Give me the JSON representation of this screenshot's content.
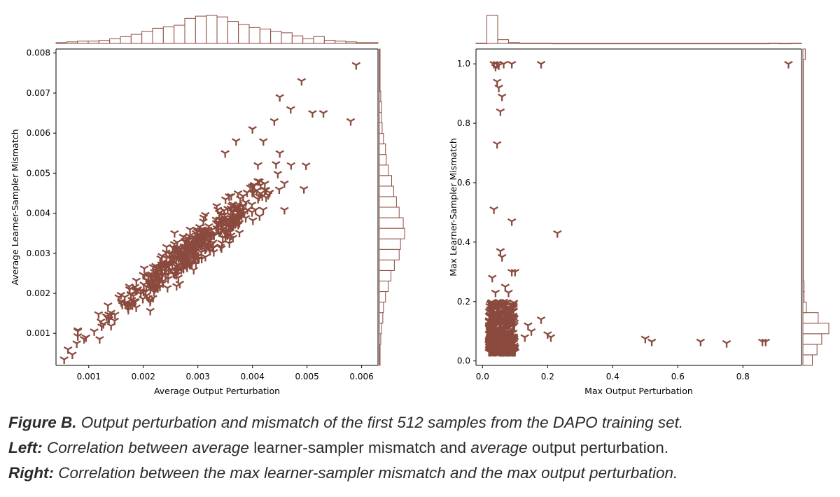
{
  "colors": {
    "marker": "#8b4a3e",
    "hist_edge": "#8b4a3e",
    "hist_fill": "#ffffff",
    "axis": "#000000",
    "text": "#2b2b2b"
  },
  "chart_data": [
    {
      "type": "scatter",
      "marker": "tri_down",
      "xlabel": "Average Output Perturbation",
      "ylabel": "Average Learner-Sampler Mismatch",
      "xlim": [
        0.0004,
        0.0063
      ],
      "ylim": [
        0.0002,
        0.0081
      ],
      "xticks": [
        0.001,
        0.002,
        0.003,
        0.004,
        0.005,
        0.006
      ],
      "xtick_labels": [
        "0.001",
        "0.002",
        "0.003",
        "0.004",
        "0.005",
        "0.006"
      ],
      "yticks": [
        0.001,
        0.002,
        0.003,
        0.004,
        0.005,
        0.006,
        0.007,
        0.008
      ],
      "ytick_labels": [
        "0.001",
        "0.002",
        "0.003",
        "0.004",
        "0.005",
        "0.006",
        "0.007",
        "0.008"
      ],
      "n_samples": 512,
      "model": {
        "kind": "linear",
        "slope": 1.05,
        "intercept": 5e-05,
        "noise": 0.00022,
        "x_mean": 0.0029,
        "x_sd": 0.00075,
        "x_min": 0.0008,
        "x_max": 0.0055
      },
      "outliers": [
        [
          0.00055,
          0.00035
        ],
        [
          0.00062,
          0.0006
        ],
        [
          0.0007,
          0.00047
        ],
        [
          0.00078,
          0.00075
        ],
        [
          0.00095,
          0.0009
        ],
        [
          0.0011,
          0.00105
        ],
        [
          0.0051,
          0.0065
        ],
        [
          0.0053,
          0.0065
        ],
        [
          0.0058,
          0.0063
        ],
        [
          0.0059,
          0.0077
        ],
        [
          0.0049,
          0.0073
        ],
        [
          0.0045,
          0.0069
        ],
        [
          0.0044,
          0.0063
        ],
        [
          0.0047,
          0.0066
        ],
        [
          0.0037,
          0.0058
        ],
        [
          0.0035,
          0.0055
        ],
        [
          0.004,
          0.0061
        ],
        [
          0.0042,
          0.0058
        ],
        [
          0.0045,
          0.0055
        ],
        [
          0.0041,
          0.0052
        ]
      ],
      "x_hist_counts": [
        1,
        2,
        3,
        3,
        4,
        6,
        9,
        12,
        16,
        20,
        22,
        24,
        33,
        36,
        37,
        35,
        29,
        25,
        21,
        19,
        16,
        14,
        10,
        6,
        9,
        4,
        3,
        2,
        1,
        1
      ],
      "y_hist_counts": [
        1,
        1,
        2,
        3,
        5,
        6,
        9,
        13,
        17,
        22,
        29,
        31,
        37,
        35,
        29,
        25,
        21,
        18,
        13,
        10,
        9,
        6,
        4,
        3,
        3,
        2,
        1,
        1,
        1,
        1
      ]
    },
    {
      "type": "scatter",
      "marker": "tri_down",
      "xlabel": "Max Output Perturbation",
      "ylabel": "Max Learner-Sampler Mismatch",
      "xlim": [
        -0.02,
        0.98
      ],
      "ylim": [
        -0.015,
        1.05
      ],
      "xticks": [
        0.0,
        0.2,
        0.4,
        0.6,
        0.8
      ],
      "xtick_labels": [
        "0.0",
        "0.2",
        "0.4",
        "0.6",
        "0.8"
      ],
      "yticks": [
        0.0,
        0.2,
        0.4,
        0.6,
        0.8,
        1.0
      ],
      "ytick_labels": [
        "0.0",
        "0.2",
        "0.4",
        "0.6",
        "0.8",
        "1.0"
      ],
      "n_samples": 512,
      "cluster": {
        "x_min": 0.02,
        "x_max": 0.1,
        "y_min": 0.03,
        "y_max": 0.2
      },
      "outliers": [
        [
          0.035,
          1.0
        ],
        [
          0.045,
          1.0
        ],
        [
          0.05,
          0.995
        ],
        [
          0.065,
          1.0
        ],
        [
          0.09,
          1.0
        ],
        [
          0.18,
          1.0
        ],
        [
          0.94,
          1.0
        ],
        [
          0.04,
          0.99
        ],
        [
          0.045,
          0.94
        ],
        [
          0.05,
          0.92
        ],
        [
          0.06,
          0.89
        ],
        [
          0.055,
          0.84
        ],
        [
          0.045,
          0.73
        ],
        [
          0.035,
          0.51
        ],
        [
          0.09,
          0.47
        ],
        [
          0.23,
          0.43
        ],
        [
          0.055,
          0.37
        ],
        [
          0.06,
          0.35
        ],
        [
          0.09,
          0.3
        ],
        [
          0.1,
          0.3
        ],
        [
          0.03,
          0.28
        ],
        [
          0.07,
          0.25
        ],
        [
          0.08,
          0.23
        ],
        [
          0.04,
          0.23
        ],
        [
          0.18,
          0.14
        ],
        [
          0.14,
          0.12
        ],
        [
          0.15,
          0.1
        ],
        [
          0.2,
          0.09
        ],
        [
          0.21,
          0.08
        ],
        [
          0.13,
          0.08
        ],
        [
          0.5,
          0.075
        ],
        [
          0.52,
          0.065
        ],
        [
          0.67,
          0.065
        ],
        [
          0.75,
          0.06
        ],
        [
          0.86,
          0.065
        ],
        [
          0.87,
          0.065
        ]
      ],
      "x_hist_counts": [
        1,
        105,
        14,
        3,
        1,
        1,
        1,
        0,
        0,
        0,
        0,
        0,
        0,
        0,
        0,
        0,
        0,
        0,
        0,
        0,
        0,
        0,
        0,
        0,
        0,
        0,
        0,
        1,
        0,
        1
      ],
      "y_hist_counts": [
        8,
        12,
        16,
        22,
        13,
        3,
        1,
        1,
        0,
        0,
        0,
        0,
        0,
        0,
        0,
        0,
        0,
        0,
        0,
        0,
        0,
        0,
        0,
        0,
        0,
        0,
        0,
        0,
        0,
        2
      ]
    }
  ],
  "caption": {
    "line1_bold": "Figure B.",
    "line1_rest": " Output perturbation and mismatch of the first 512 samples from the DAPO training set.",
    "line2_bold": "Left:",
    "line2_a": " Correlation between ",
    "line2_em1": "average",
    "line2_b": " learner-sampler mismatch and ",
    "line2_em2": "average",
    "line2_c": " output perturbation.",
    "line3_bold": "Right:",
    "line3_rest": " Correlation between the max learner-sampler mismatch and the max output perturbation."
  }
}
